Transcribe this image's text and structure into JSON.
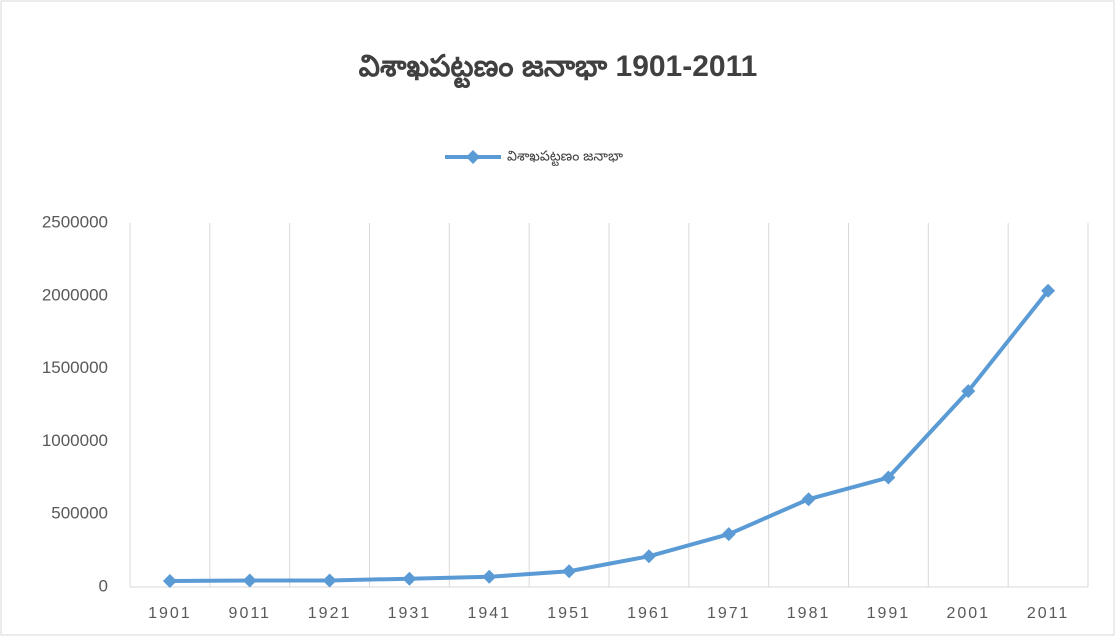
{
  "chart_data": {
    "type": "line",
    "title": "విశాఖపట్టణం జనాభా 1901-2011",
    "categories": [
      "1901",
      "9011",
      "1921",
      "1931",
      "1941",
      "1951",
      "1961",
      "1971",
      "1981",
      "1991",
      "2001",
      "2011"
    ],
    "series": [
      {
        "name": "విశాఖపట్టణం జనాభా",
        "color": "#5b9bd5",
        "values": [
          41000,
          45000,
          45000,
          57000,
          70000,
          108000,
          211000,
          363000,
          603000,
          752000,
          1345000,
          2035000
        ]
      }
    ],
    "ylim": [
      0,
      2500000
    ],
    "yticks": [
      0,
      500000,
      1000000,
      1500000,
      2000000,
      2500000
    ],
    "grid": true,
    "legend": "top"
  }
}
